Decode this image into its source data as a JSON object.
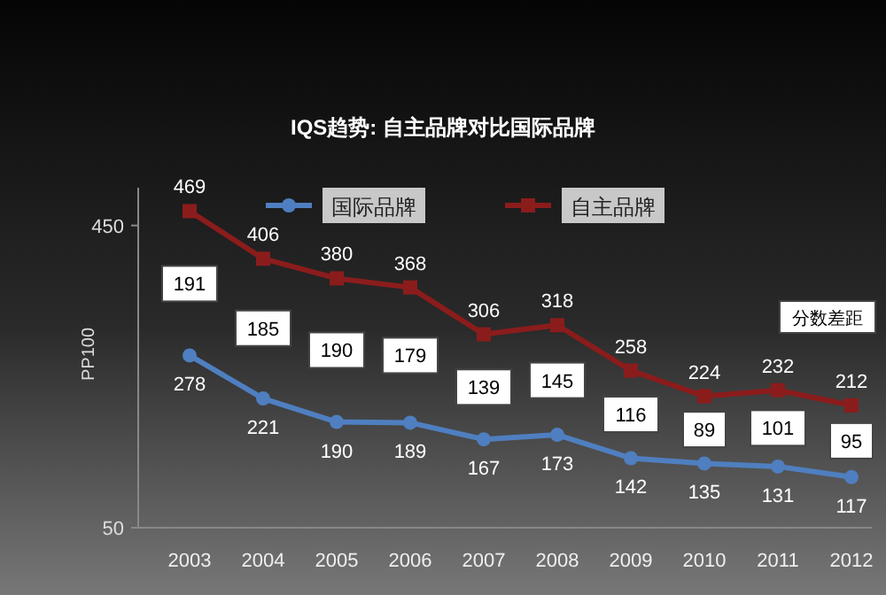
{
  "chart_data": {
    "type": "line",
    "title": "IQS趋势: 自主品牌对比国际品牌",
    "ylabel": "PP100",
    "categories": [
      "2003",
      "2004",
      "2005",
      "2006",
      "2007",
      "2008",
      "2009",
      "2010",
      "2011",
      "2012"
    ],
    "series": [
      {
        "name": "国际品牌",
        "color": "#4f7fc0",
        "marker": "circle",
        "values": [
          278,
          221,
          190,
          189,
          167,
          173,
          142,
          135,
          131,
          117
        ]
      },
      {
        "name": "自主品牌",
        "color": "#8b1c1c",
        "marker": "square",
        "values": [
          469,
          406,
          380,
          368,
          306,
          318,
          258,
          224,
          232,
          212
        ]
      }
    ],
    "ylim": [
      50,
      500
    ],
    "yticks": [
      50,
      450
    ],
    "data_labels": true,
    "legend": "top",
    "grid": false,
    "annotations": [
      {
        "text": "191",
        "x": "2003",
        "y": 373
      },
      {
        "text": "185",
        "x": "2004",
        "y": 314
      },
      {
        "text": "190",
        "x": "2005",
        "y": 285
      },
      {
        "text": "179",
        "x": "2006",
        "y": 278
      },
      {
        "text": "139",
        "x": "2007",
        "y": 236
      },
      {
        "text": "145",
        "x": "2008",
        "y": 245
      },
      {
        "text": "116",
        "x": "2009",
        "y": 200
      },
      {
        "text": "89",
        "x": "2010",
        "y": 180
      },
      {
        "text": "101",
        "x": "2011",
        "y": 182
      },
      {
        "text": "95",
        "x": "2012",
        "y": 165
      },
      "分数差距"
    ]
  }
}
